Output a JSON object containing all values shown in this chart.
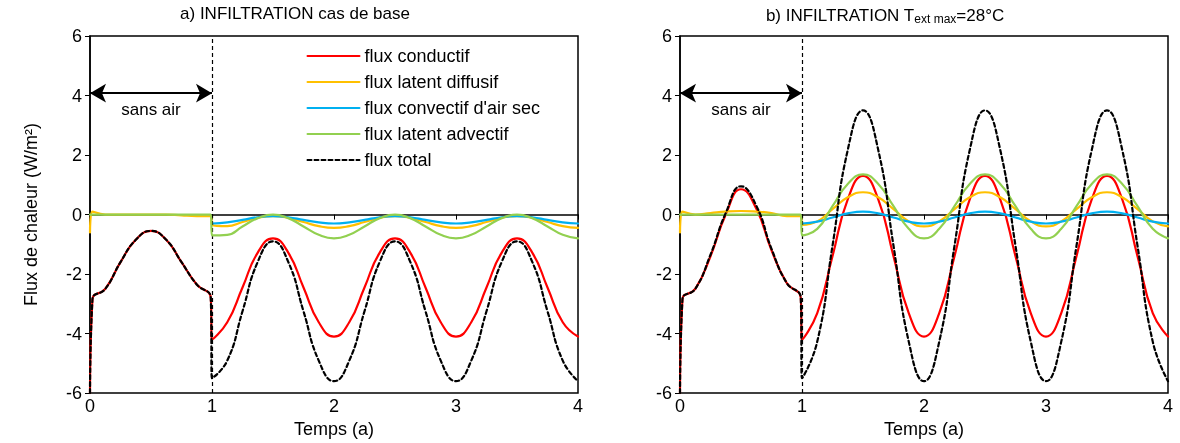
{
  "chart_data": [
    {
      "type": "line",
      "title": "a) INFILTRATION cas de base",
      "xlabel": "Temps (a)",
      "ylabel": "Flux de chaleur (W/m²)",
      "x": [
        0,
        0.02,
        0.125,
        0.25,
        0.375,
        0.5,
        0.625,
        0.75,
        0.875,
        0.99,
        1,
        1.125,
        1.25,
        1.375,
        1.5,
        1.625,
        1.75,
        1.875,
        2,
        2.125,
        2.25,
        2.375,
        2.5,
        2.625,
        2.75,
        2.875,
        3,
        3.125,
        3.25,
        3.375,
        3.5,
        3.625,
        3.75,
        3.875,
        4
      ],
      "xlim": [
        0,
        4
      ],
      "xticks": [
        0,
        1,
        2,
        3,
        4
      ],
      "ylim": [
        -6,
        6
      ],
      "yticks": [
        -6,
        -4,
        -2,
        0,
        2,
        4,
        6
      ],
      "grid": false,
      "legend": "top right",
      "series": [
        {
          "name": "flux conductif",
          "color": "#ff0000",
          "line_style": "solid",
          "values": [
            -6,
            -2.85,
            -2.5,
            -1.6,
            -0.85,
            -0.55,
            -0.85,
            -1.6,
            -2.35,
            -2.8,
            -4.2,
            -3.62,
            -2.45,
            -1.28,
            -0.8,
            -1.28,
            -2.45,
            -3.62,
            -4.1,
            -3.62,
            -2.45,
            -1.28,
            -0.8,
            -1.28,
            -2.45,
            -3.62,
            -4.1,
            -3.62,
            -2.45,
            -1.28,
            -0.8,
            -1.28,
            -2.45,
            -3.62,
            -4.1
          ]
        },
        {
          "name": "flux latent diffusif",
          "color": "#ffc000",
          "line_style": "solid",
          "values": [
            -0.6,
            0.1,
            0,
            0,
            0,
            0,
            0,
            -0.03,
            -0.05,
            -0.05,
            -0.35,
            -0.39,
            -0.25,
            -0.11,
            -0.05,
            -0.11,
            -0.25,
            -0.39,
            -0.45,
            -0.39,
            -0.25,
            -0.11,
            -0.05,
            -0.11,
            -0.25,
            -0.39,
            -0.45,
            -0.39,
            -0.25,
            -0.11,
            -0.05,
            -0.11,
            -0.25,
            -0.39,
            -0.45
          ]
        },
        {
          "name": "flux convectif d'air sec",
          "color": "#00b0f0",
          "line_style": "solid",
          "values": [
            null,
            null,
            null,
            null,
            null,
            null,
            null,
            null,
            null,
            null,
            -0.3,
            -0.26,
            -0.18,
            -0.09,
            -0.05,
            -0.09,
            -0.18,
            -0.26,
            -0.3,
            -0.26,
            -0.18,
            -0.09,
            -0.05,
            -0.09,
            -0.18,
            -0.26,
            -0.3,
            -0.26,
            -0.18,
            -0.09,
            -0.05,
            -0.09,
            -0.18,
            -0.26,
            -0.3
          ]
        },
        {
          "name": "flux latent advectif",
          "color": "#92d050",
          "line_style": "solid",
          "values": [
            0,
            0,
            0,
            0,
            0,
            0,
            0,
            0,
            0,
            0,
            -0.7,
            -0.68,
            -0.4,
            -0.12,
            0,
            -0.12,
            -0.4,
            -0.68,
            -0.8,
            -0.68,
            -0.4,
            -0.12,
            0,
            -0.12,
            -0.4,
            -0.68,
            -0.8,
            -0.68,
            -0.4,
            -0.12,
            0,
            -0.12,
            -0.4,
            -0.68,
            -0.8
          ]
        },
        {
          "name": "flux total",
          "color": "#000000",
          "line_style": "dashed",
          "values": [
            -6,
            -2.85,
            -2.5,
            -1.6,
            -0.85,
            -0.55,
            -0.85,
            -1.6,
            -2.35,
            -2.8,
            -5.5,
            -4.91,
            -3.25,
            -1.59,
            -0.9,
            -1.59,
            -3.25,
            -4.91,
            -5.6,
            -4.91,
            -3.25,
            -1.59,
            -0.9,
            -1.59,
            -3.25,
            -4.91,
            -5.6,
            -4.91,
            -3.25,
            -1.59,
            -0.9,
            -1.59,
            -3.25,
            -4.91,
            -5.6
          ]
        }
      ],
      "ref_lines": [
        {
          "axis": "x",
          "value": 1,
          "color": "#000000",
          "line_style": "dashed"
        }
      ],
      "annotations": [
        "sans air"
      ]
    },
    {
      "type": "line",
      "title": "b) INFILTRATION T$_{ext max}$=28°C",
      "xlabel": "Temps (a)",
      "x": [
        0,
        0.02,
        0.125,
        0.25,
        0.375,
        0.5,
        0.625,
        0.75,
        0.875,
        0.99,
        1,
        1.125,
        1.25,
        1.375,
        1.5,
        1.625,
        1.75,
        1.875,
        2,
        2.125,
        2.25,
        2.375,
        2.5,
        2.625,
        2.75,
        2.875,
        3,
        3.125,
        3.25,
        3.375,
        3.5,
        3.625,
        3.75,
        3.875,
        4
      ],
      "xlim": [
        0,
        4
      ],
      "xticks": [
        0,
        1,
        2,
        3,
        4
      ],
      "ylim": [
        -6,
        6
      ],
      "yticks": [
        -6,
        -4,
        -2,
        0,
        2,
        4,
        6
      ],
      "grid": false,
      "series": [
        {
          "color": "#ff0000",
          "line_style": "solid",
          "values": [
            -6,
            -2.85,
            -2.5,
            -1.4,
            0,
            0.85,
            0.2,
            -1.2,
            -2.3,
            -2.8,
            -4.2,
            -3.31,
            -1.4,
            0.51,
            1.3,
            0.51,
            -1.4,
            -3.31,
            -4.1,
            -3.31,
            -1.4,
            0.51,
            1.3,
            0.51,
            -1.4,
            -3.31,
            -4.1,
            -3.31,
            -1.4,
            0.51,
            1.3,
            0.51,
            -1.4,
            -3.31,
            -4.1
          ]
        },
        {
          "color": "#ffc000",
          "line_style": "solid",
          "values": [
            -0.6,
            0.1,
            0,
            0.05,
            0.1,
            0.12,
            0.1,
            0.05,
            -0.05,
            -0.05,
            -0.35,
            -0.23,
            0.18,
            0.58,
            0.75,
            0.58,
            0.18,
            -0.23,
            -0.4,
            -0.23,
            0.18,
            0.58,
            0.75,
            0.58,
            0.18,
            -0.23,
            -0.4,
            -0.23,
            0.18,
            0.58,
            0.75,
            0.58,
            0.18,
            -0.23,
            -0.4
          ]
        },
        {
          "color": "#00b0f0",
          "line_style": "solid",
          "values": [
            null,
            null,
            null,
            null,
            null,
            null,
            null,
            null,
            null,
            null,
            -0.3,
            -0.24,
            -0.1,
            0.04,
            0.1,
            0.04,
            -0.1,
            -0.24,
            -0.3,
            -0.24,
            -0.1,
            0.04,
            0.1,
            0.04,
            -0.1,
            -0.24,
            -0.3,
            -0.24,
            -0.1,
            0.04,
            0.1,
            0.04,
            -0.1,
            -0.24,
            -0.3
          ]
        },
        {
          "color": "#92d050",
          "line_style": "solid",
          "values": [
            0,
            0,
            0,
            0,
            0,
            0,
            0,
            0,
            0,
            0,
            -0.7,
            -0.48,
            0.28,
            1.03,
            1.35,
            1.03,
            0.28,
            -0.48,
            -0.8,
            -0.48,
            0.28,
            1.03,
            1.35,
            1.03,
            0.28,
            -0.48,
            -0.8,
            -0.48,
            0.28,
            1.03,
            1.35,
            1.03,
            0.28,
            -0.48,
            -0.8
          ]
        },
        {
          "color": "#000000",
          "line_style": "dashed",
          "values": [
            -6,
            -2.85,
            -2.5,
            -1.35,
            0.05,
            0.95,
            0.3,
            -1.15,
            -2.3,
            -2.8,
            -5.5,
            -4.27,
            -1.05,
            2.17,
            3.5,
            2.17,
            -1.05,
            -4.27,
            -5.6,
            -4.27,
            -1.05,
            2.17,
            3.5,
            2.17,
            -1.05,
            -4.27,
            -5.6,
            -4.27,
            -1.05,
            2.17,
            3.5,
            2.17,
            -1.05,
            -4.27,
            -5.6
          ]
        }
      ],
      "ref_lines": [
        {
          "axis": "x",
          "value": 1,
          "color": "#000000",
          "line_style": "dashed"
        }
      ],
      "annotations": [
        "sans air"
      ]
    }
  ]
}
